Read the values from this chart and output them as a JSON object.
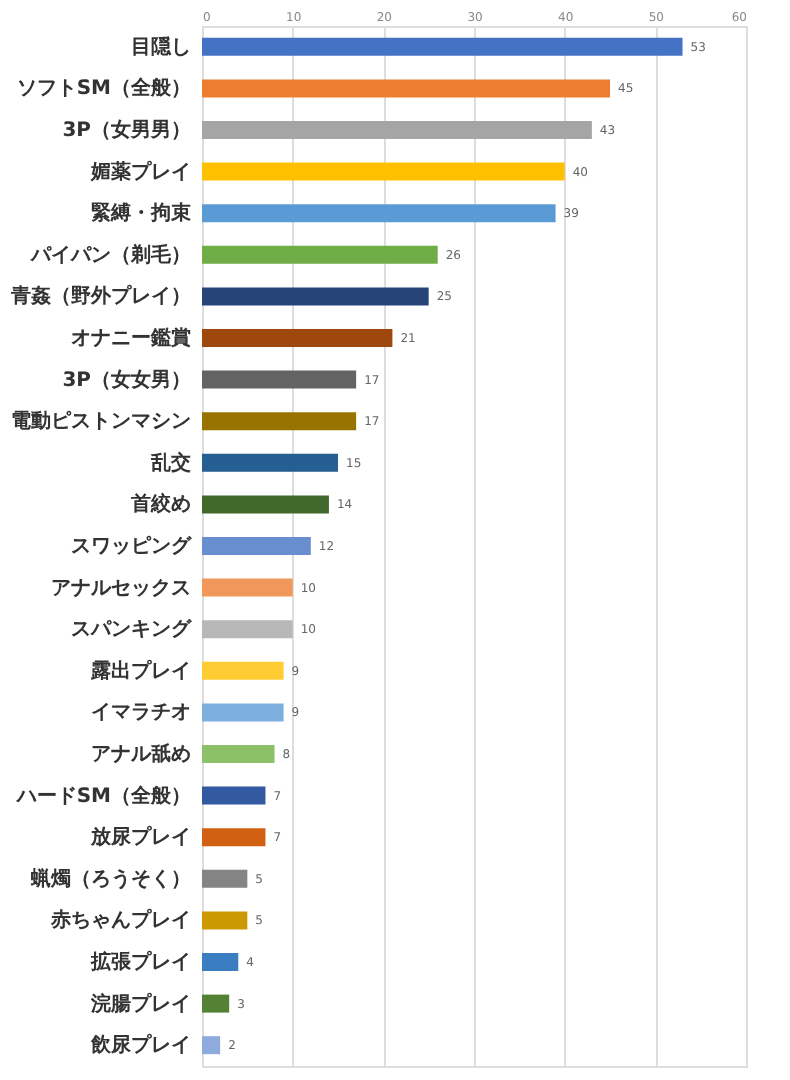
{
  "chart_data": {
    "type": "bar",
    "orientation": "horizontal",
    "categories": [
      "目隠し",
      "ソフトSM（全般）",
      "3P（女男男）",
      "媚薬プレイ",
      "緊縛・拘束",
      "パイパン（剃毛）",
      "青姦（野外プレイ）",
      "オナニー鑑賞",
      "3P（女女男）",
      "電動ピストンマシン",
      "乱交",
      "首絞め",
      "スワッピング",
      "アナルセックス",
      "スパンキング",
      "露出プレイ",
      "イマラチオ",
      "アナル舐め",
      "ハードSM（全般）",
      "放尿プレイ",
      "蝋燭（ろうそく）",
      "赤ちゃんプレイ",
      "拡張プレイ",
      "浣腸プレイ",
      "飲尿プレイ"
    ],
    "values": [
      53,
      45,
      43,
      40,
      39,
      26,
      25,
      21,
      17,
      17,
      15,
      14,
      12,
      10,
      10,
      9,
      9,
      8,
      7,
      7,
      5,
      5,
      4,
      3,
      2
    ],
    "colors": [
      "#4472c4",
      "#ed7d31",
      "#a5a5a5",
      "#ffc000",
      "#5b9bd5",
      "#70ad47",
      "#264478",
      "#9e480e",
      "#636363",
      "#997300",
      "#255e91",
      "#43682b",
      "#698ed0",
      "#f1975a",
      "#b7b7b7",
      "#ffcd33",
      "#7cafdd",
      "#8cc168",
      "#335aa1",
      "#d26012",
      "#848484",
      "#cc9a00",
      "#3a7dc0",
      "#548235",
      "#8faadc"
    ],
    "xlim": [
      0,
      60
    ],
    "xticks": [
      0,
      10,
      20,
      30,
      40,
      50,
      60
    ],
    "grid": "x",
    "data_labels": true
  }
}
